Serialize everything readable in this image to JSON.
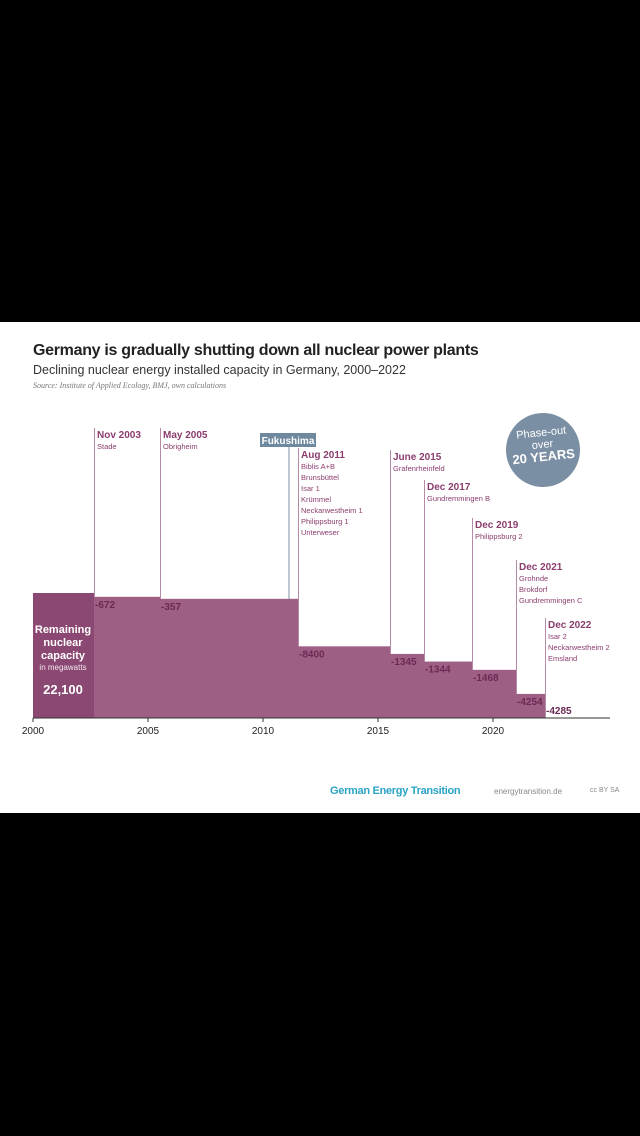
{
  "title": "Germany is gradually shutting down all nuclear power plants",
  "subtitle": "Declining nuclear energy installed capacity in Germany, 2000–2022",
  "source": "Source: Institute of Applied Ecology, BMJ, own calculations",
  "badge": {
    "line1": "Phase-out",
    "line2": "over",
    "line3": "20 YEARS"
  },
  "footer": {
    "brand": "German Energy Transition",
    "url": "energytransition.de",
    "license": "cc BY SA"
  },
  "colors": {
    "bar": "#9e5f84",
    "initial": "#8b4872",
    "text": "#8b3d6e",
    "badge": "#7b8fa4"
  },
  "chart_data": {
    "type": "area",
    "title": "Germany is gradually shutting down all nuclear power plants",
    "ylabel": "Remaining nuclear capacity in megawatts",
    "initial": {
      "label1": "Remaining",
      "label2": "nuclear",
      "label3": "capacity",
      "label4": "in megawatts",
      "value": 22100,
      "value_label": "22,100"
    },
    "xticks": [
      "2000",
      "2005",
      "2010",
      "2015",
      "2020"
    ],
    "xlim": [
      2000,
      2025
    ],
    "marker": {
      "label": "Fukushima",
      "date": "Mar 2011"
    },
    "events": [
      {
        "date": "Nov 2003",
        "plants": [
          "Stade"
        ],
        "change": -672,
        "label": "-672"
      },
      {
        "date": "May 2005",
        "plants": [
          "Obrigheim"
        ],
        "change": -357,
        "label": "-357"
      },
      {
        "date": "Aug 2011",
        "plants": [
          "Biblis A+B",
          "Brunsbüttel",
          "Isar 1",
          "Krümmel",
          "Neckarwestheim 1",
          "Philippsburg 1",
          "Unterweser"
        ],
        "change": -8400,
        "label": "-8400"
      },
      {
        "date": "June 2015",
        "plants": [
          "Grafenrheinfeld"
        ],
        "change": -1345,
        "label": "-1345"
      },
      {
        "date": "Dec 2017",
        "plants": [
          "Gundremmingen B"
        ],
        "change": -1344,
        "label": "-1344"
      },
      {
        "date": "Dec 2019",
        "plants": [
          "Philippsburg 2"
        ],
        "change": -1468,
        "label": "-1468"
      },
      {
        "date": "Dec 2021",
        "plants": [
          "Grohnde",
          "Brokdorf",
          "Gundremmingen C"
        ],
        "change": -4254,
        "label": "-4254"
      },
      {
        "date": "Dec 2022",
        "plants": [
          "Isar 2",
          "Neckarwestheim 2",
          "Emsland"
        ],
        "change": -4285,
        "label": "-4285"
      }
    ]
  }
}
